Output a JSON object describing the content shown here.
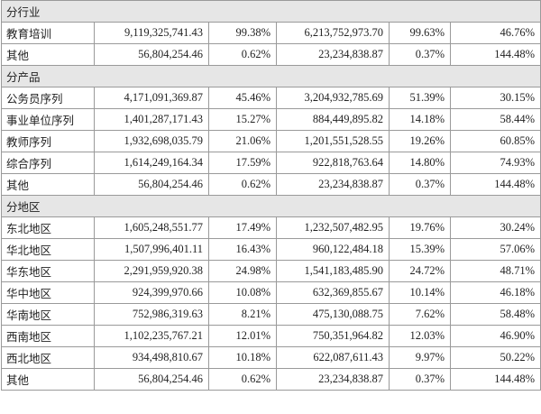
{
  "sections": [
    {
      "title": "分行业",
      "rows": [
        [
          "教育培训",
          "9,119,325,741.43",
          "99.38%",
          "6,213,752,973.70",
          "99.63%",
          "46.76%"
        ],
        [
          "其他",
          "56,804,254.46",
          "0.62%",
          "23,234,838.87",
          "0.37%",
          "144.48%"
        ]
      ]
    },
    {
      "title": "分产品",
      "rows": [
        [
          "公务员序列",
          "4,171,091,369.87",
          "45.46%",
          "3,204,932,785.69",
          "51.39%",
          "30.15%"
        ],
        [
          "事业单位序列",
          "1,401,287,171.43",
          "15.27%",
          "884,449,895.82",
          "14.18%",
          "58.44%"
        ],
        [
          "教师序列",
          "1,932,698,035.79",
          "21.06%",
          "1,201,551,528.55",
          "19.26%",
          "60.85%"
        ],
        [
          "综合序列",
          "1,614,249,164.34",
          "17.59%",
          "922,818,763.64",
          "14.80%",
          "74.93%"
        ],
        [
          "其他",
          "56,804,254.46",
          "0.62%",
          "23,234,838.87",
          "0.37%",
          "144.48%"
        ]
      ]
    },
    {
      "title": "分地区",
      "rows": [
        [
          "东北地区",
          "1,605,248,551.77",
          "17.49%",
          "1,232,507,482.95",
          "19.76%",
          "30.24%"
        ],
        [
          "华北地区",
          "1,507,996,401.11",
          "16.43%",
          "960,122,484.18",
          "15.39%",
          "57.06%"
        ],
        [
          "华东地区",
          "2,291,959,920.38",
          "24.98%",
          "1,541,183,485.90",
          "24.72%",
          "48.71%"
        ],
        [
          "华中地区",
          "924,399,970.66",
          "10.08%",
          "632,369,855.67",
          "10.14%",
          "46.18%"
        ],
        [
          "华南地区",
          "752,986,319.63",
          "8.21%",
          "475,130,088.75",
          "7.62%",
          "58.48%"
        ],
        [
          "西南地区",
          "1,102,235,767.21",
          "12.01%",
          "750,351,964.82",
          "12.03%",
          "46.90%"
        ],
        [
          "西北地区",
          "934,498,810.67",
          "10.18%",
          "622,087,611.43",
          "9.97%",
          "50.22%"
        ],
        [
          "其他",
          "56,804,254.46",
          "0.62%",
          "23,234,838.87",
          "0.37%",
          "144.48%"
        ]
      ]
    }
  ]
}
